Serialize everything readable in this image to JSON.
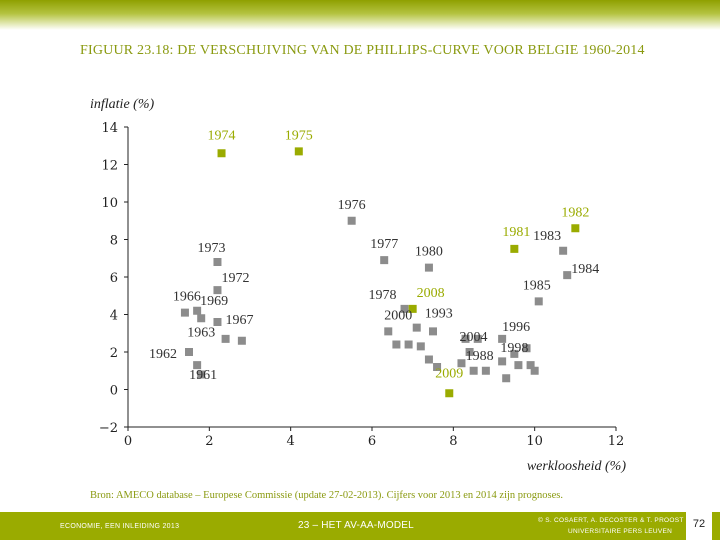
{
  "title": "FIGUUR 23.18: DE VERSCHUIVING VAN DE PHILLIPS-CURVE VOOR BELGIE 1960-2014",
  "colors": {
    "accent": "#9aab00",
    "title": "#8a9a10",
    "gray_point": "#8c8c8c",
    "green_point": "#9aab00"
  },
  "chart_data": {
    "type": "scatter",
    "xlabel": "werkloosheid (%)",
    "ylabel": "inflatie (%)",
    "xlim": [
      0,
      12
    ],
    "ylim": [
      -2,
      14
    ],
    "xticks": [
      "0",
      "2",
      "4",
      "6",
      "8",
      "10",
      "12"
    ],
    "yticks": [
      "−2",
      "0",
      "2",
      "4",
      "6",
      "8",
      "10",
      "12",
      "14"
    ],
    "grid": false,
    "series": [
      {
        "name": "gray",
        "points": [
          {
            "x": 2.2,
            "y": 6.8,
            "label": "1973"
          },
          {
            "x": 2.2,
            "y": 5.3,
            "label": "1972"
          },
          {
            "x": 1.4,
            "y": 4.1,
            "label": "1966"
          },
          {
            "x": 1.7,
            "y": 4.2,
            "label": "1969"
          },
          {
            "x": 2.2,
            "y": 3.6,
            "label": "1967"
          },
          {
            "x": 1.8,
            "y": 3.8,
            "label": "1963"
          },
          {
            "x": 2.4,
            "y": 2.7,
            "label": ""
          },
          {
            "x": 2.8,
            "y": 2.6,
            "label": ""
          },
          {
            "x": 1.5,
            "y": 2.0,
            "label": "1962"
          },
          {
            "x": 1.7,
            "y": 1.3,
            "label": "1961"
          },
          {
            "x": 1.8,
            "y": 0.8,
            "label": ""
          },
          {
            "x": 5.5,
            "y": 9.0,
            "label": "1976"
          },
          {
            "x": 6.3,
            "y": 6.9,
            "label": "1977"
          },
          {
            "x": 7.4,
            "y": 6.5,
            "label": "1980"
          },
          {
            "x": 6.8,
            "y": 4.3,
            "label": "1978"
          },
          {
            "x": 6.4,
            "y": 3.1,
            "label": "2000"
          },
          {
            "x": 7.1,
            "y": 3.3,
            "label": "1993"
          },
          {
            "x": 7.5,
            "y": 3.1,
            "label": ""
          },
          {
            "x": 6.6,
            "y": 2.4,
            "label": ""
          },
          {
            "x": 6.9,
            "y": 2.4,
            "label": ""
          },
          {
            "x": 7.2,
            "y": 2.3,
            "label": ""
          },
          {
            "x": 7.4,
            "y": 1.6,
            "label": ""
          },
          {
            "x": 7.6,
            "y": 1.2,
            "label": ""
          },
          {
            "x": 8.3,
            "y": 2.7,
            "label": "2004"
          },
          {
            "x": 8.6,
            "y": 2.7,
            "label": ""
          },
          {
            "x": 9.2,
            "y": 2.7,
            "label": "1996"
          },
          {
            "x": 8.4,
            "y": 2.0,
            "label": "1988"
          },
          {
            "x": 8.2,
            "y": 1.4,
            "label": ""
          },
          {
            "x": 8.5,
            "y": 1.0,
            "label": ""
          },
          {
            "x": 8.8,
            "y": 1.0,
            "label": ""
          },
          {
            "x": 9.5,
            "y": 1.9,
            "label": "1998"
          },
          {
            "x": 9.8,
            "y": 2.2,
            "label": ""
          },
          {
            "x": 9.6,
            "y": 1.3,
            "label": ""
          },
          {
            "x": 9.9,
            "y": 1.3,
            "label": ""
          },
          {
            "x": 10.0,
            "y": 1.0,
            "label": ""
          },
          {
            "x": 9.2,
            "y": 1.5,
            "label": ""
          },
          {
            "x": 9.3,
            "y": 0.6,
            "label": ""
          },
          {
            "x": 10.7,
            "y": 7.4,
            "label": "1983"
          },
          {
            "x": 10.8,
            "y": 6.1,
            "label": "1984"
          },
          {
            "x": 10.1,
            "y": 4.7,
            "label": "1985"
          }
        ]
      },
      {
        "name": "green",
        "points": [
          {
            "x": 2.3,
            "y": 12.6,
            "label": "1974"
          },
          {
            "x": 4.2,
            "y": 12.7,
            "label": "1975"
          },
          {
            "x": 9.5,
            "y": 7.5,
            "label": "1981"
          },
          {
            "x": 11.0,
            "y": 8.6,
            "label": "1982"
          },
          {
            "x": 7.0,
            "y": 4.3,
            "label": "2008"
          },
          {
            "x": 7.9,
            "y": -0.2,
            "label": "2009"
          }
        ]
      }
    ]
  },
  "source": "Bron: AMECO database – Europese Commissie (update 27-02-2013). Cijfers voor 2013 en 2014 zijn prognoses.",
  "footer": {
    "left": "ECONOMIE, EEN INLEIDING 2013",
    "middle": "23 – HET AV-AA-MODEL",
    "right_line1": "© S. COSAERT, A. DECOSTER & T. PROOST",
    "right_line2": "UNIVERSITAIRE PERS LEUVEN",
    "page": "72"
  }
}
